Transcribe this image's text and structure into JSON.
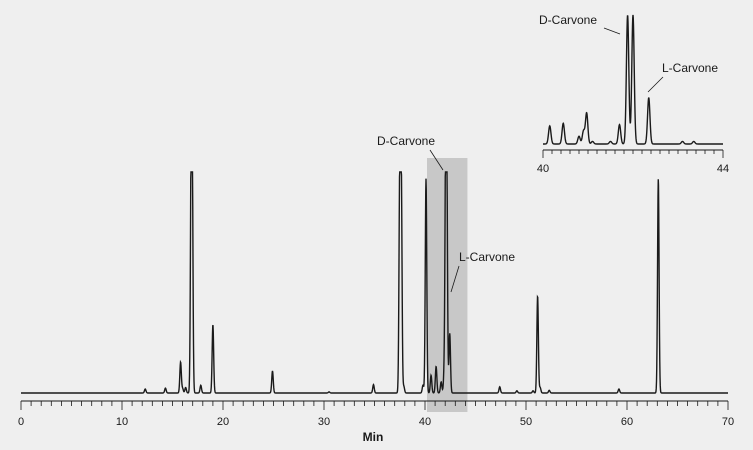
{
  "chart_data": [
    {
      "type": "line",
      "xlabel": "Min",
      "ylabel": "",
      "xlim": [
        0,
        70
      ],
      "ylim": [
        0,
        1
      ],
      "x_ticks": [
        0,
        10,
        20,
        30,
        40,
        50,
        60,
        70
      ],
      "minor_tick_step": 1,
      "highlight_range": [
        40.2,
        44.2
      ],
      "line_color": "#1a1a1a",
      "highlight_color": "#c8c8c8",
      "peaks": [
        {
          "x": 12.3,
          "h": 0.018
        },
        {
          "x": 14.3,
          "h": 0.022
        },
        {
          "x": 15.8,
          "h": 0.14
        },
        {
          "x": 16.0,
          "h": 0.02
        },
        {
          "x": 16.3,
          "h": 0.025
        },
        {
          "x": 16.85,
          "h": 0.97
        },
        {
          "x": 16.95,
          "h": 0.97
        },
        {
          "x": 17.8,
          "h": 0.035
        },
        {
          "x": 19.0,
          "h": 0.31
        },
        {
          "x": 24.9,
          "h": 0.1
        },
        {
          "x": 30.5,
          "h": 0.005
        },
        {
          "x": 34.9,
          "h": 0.038
        },
        {
          "x": 37.5,
          "h": 0.97
        },
        {
          "x": 37.65,
          "h": 0.97
        },
        {
          "x": 37.9,
          "h": 0.03
        },
        {
          "x": 39.8,
          "h": 0.035
        },
        {
          "x": 40.1,
          "h": 0.97
        },
        {
          "x": 40.6,
          "h": 0.08
        },
        {
          "x": 41.1,
          "h": 0.12
        },
        {
          "x": 41.6,
          "h": 0.05
        },
        {
          "x": 41.9,
          "h": 0.08
        },
        {
          "x": 42.05,
          "h": 0.97
        },
        {
          "x": 42.15,
          "h": 0.97
        },
        {
          "x": 42.45,
          "h": 0.27
        },
        {
          "x": 47.4,
          "h": 0.028
        },
        {
          "x": 49.1,
          "h": 0.01
        },
        {
          "x": 50.7,
          "h": 0.01
        },
        {
          "x": 51.15,
          "h": 0.44
        },
        {
          "x": 51.4,
          "h": 0.025
        },
        {
          "x": 52.3,
          "h": 0.012
        },
        {
          "x": 59.2,
          "h": 0.018
        },
        {
          "x": 63.1,
          "h": 0.97
        }
      ],
      "annotations": [
        {
          "text": "D-Carvone",
          "x": 42.1
        },
        {
          "text": "L-Carvone",
          "x": 42.45
        }
      ]
    },
    {
      "type": "line",
      "xlabel": "",
      "xlim": [
        40,
        44
      ],
      "ylim": [
        0,
        1
      ],
      "x_ticks": [
        40,
        44
      ],
      "minor_tick_step": 0.2,
      "peaks": [
        {
          "x": 40.15,
          "h": 0.14
        },
        {
          "x": 40.45,
          "h": 0.16
        },
        {
          "x": 40.8,
          "h": 0.06
        },
        {
          "x": 40.9,
          "h": 0.1
        },
        {
          "x": 40.97,
          "h": 0.24
        },
        {
          "x": 41.1,
          "h": 0.02
        },
        {
          "x": 41.5,
          "h": 0.02
        },
        {
          "x": 41.7,
          "h": 0.15
        },
        {
          "x": 41.88,
          "h": 1.0
        },
        {
          "x": 42.0,
          "h": 1.0
        },
        {
          "x": 42.35,
          "h": 0.36
        },
        {
          "x": 43.1,
          "h": 0.02
        },
        {
          "x": 43.35,
          "h": 0.02
        }
      ],
      "annotations": [
        {
          "text": "D-Carvone",
          "x": 41.9
        },
        {
          "text": "L-Carvone",
          "x": 42.35
        }
      ]
    }
  ]
}
